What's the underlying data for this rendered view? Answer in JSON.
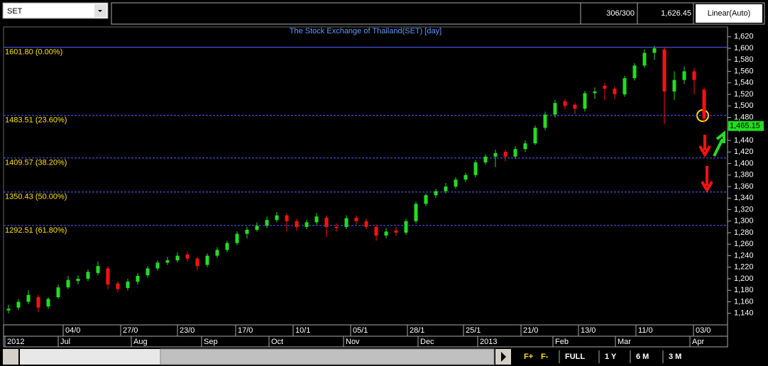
{
  "header": {
    "symbol": "SET",
    "count": "306/300",
    "price": "1,626.45",
    "scale": "Linear(Auto)"
  },
  "chart_data": {
    "type": "candlestick",
    "title": "The Stock Exchange of Thailand(SET) [day]",
    "up_color": "#22dd22",
    "down_color": "#ff1111",
    "ohlc": [
      [
        1145,
        1155,
        1140,
        1148
      ],
      [
        1150,
        1165,
        1146,
        1160
      ],
      [
        1160,
        1180,
        1156,
        1172
      ],
      [
        1168,
        1172,
        1142,
        1150
      ],
      [
        1152,
        1168,
        1148,
        1165
      ],
      [
        1168,
        1190,
        1165,
        1185
      ],
      [
        1185,
        1205,
        1182,
        1198
      ],
      [
        1196,
        1206,
        1190,
        1200
      ],
      [
        1200,
        1216,
        1196,
        1212
      ],
      [
        1210,
        1230,
        1206,
        1222
      ],
      [
        1218,
        1222,
        1182,
        1190
      ],
      [
        1192,
        1196,
        1176,
        1182
      ],
      [
        1184,
        1200,
        1180,
        1195
      ],
      [
        1195,
        1210,
        1190,
        1205
      ],
      [
        1206,
        1222,
        1202,
        1218
      ],
      [
        1218,
        1232,
        1214,
        1228
      ],
      [
        1228,
        1238,
        1224,
        1232
      ],
      [
        1232,
        1246,
        1228,
        1240
      ],
      [
        1242,
        1246,
        1230,
        1235
      ],
      [
        1235,
        1238,
        1215,
        1222
      ],
      [
        1224,
        1244,
        1220,
        1240
      ],
      [
        1240,
        1255,
        1236,
        1250
      ],
      [
        1250,
        1266,
        1246,
        1262
      ],
      [
        1262,
        1282,
        1258,
        1278
      ],
      [
        1278,
        1290,
        1270,
        1285
      ],
      [
        1285,
        1298,
        1282,
        1292
      ],
      [
        1292,
        1308,
        1288,
        1302
      ],
      [
        1302,
        1316,
        1298,
        1310
      ],
      [
        1310,
        1314,
        1282,
        1300
      ],
      [
        1300,
        1304,
        1284,
        1290
      ],
      [
        1290,
        1302,
        1286,
        1298
      ],
      [
        1298,
        1314,
        1294,
        1308
      ],
      [
        1306,
        1310,
        1272,
        1290
      ],
      [
        1290,
        1296,
        1282,
        1288
      ],
      [
        1290,
        1310,
        1286,
        1305
      ],
      [
        1306,
        1310,
        1294,
        1300
      ],
      [
        1300,
        1304,
        1286,
        1290
      ],
      [
        1290,
        1294,
        1266,
        1275
      ],
      [
        1275,
        1288,
        1270,
        1282
      ],
      [
        1284,
        1290,
        1274,
        1280
      ],
      [
        1280,
        1304,
        1276,
        1300
      ],
      [
        1300,
        1334,
        1296,
        1330
      ],
      [
        1330,
        1348,
        1326,
        1345
      ],
      [
        1345,
        1356,
        1340,
        1352
      ],
      [
        1352,
        1366,
        1348,
        1360
      ],
      [
        1360,
        1376,
        1356,
        1372
      ],
      [
        1372,
        1384,
        1368,
        1380
      ],
      [
        1380,
        1406,
        1376,
        1402
      ],
      [
        1402,
        1416,
        1398,
        1412
      ],
      [
        1412,
        1424,
        1394,
        1418
      ],
      [
        1420,
        1424,
        1404,
        1412
      ],
      [
        1412,
        1430,
        1408,
        1425
      ],
      [
        1425,
        1440,
        1420,
        1435
      ],
      [
        1435,
        1466,
        1432,
        1462
      ],
      [
        1462,
        1490,
        1458,
        1485
      ],
      [
        1485,
        1510,
        1480,
        1505
      ],
      [
        1508,
        1512,
        1494,
        1500
      ],
      [
        1502,
        1506,
        1486,
        1495
      ],
      [
        1495,
        1526,
        1490,
        1522
      ],
      [
        1522,
        1532,
        1512,
        1525
      ],
      [
        1535,
        1540,
        1510,
        1530
      ],
      [
        1530,
        1534,
        1512,
        1520
      ],
      [
        1520,
        1552,
        1516,
        1548
      ],
      [
        1548,
        1574,
        1544,
        1570
      ],
      [
        1570,
        1598,
        1566,
        1592
      ],
      [
        1592,
        1604,
        1580,
        1600
      ],
      [
        1598,
        1602,
        1468,
        1525
      ],
      [
        1525,
        1560,
        1510,
        1545
      ],
      [
        1545,
        1568,
        1538,
        1560
      ],
      [
        1560,
        1566,
        1520,
        1545
      ],
      [
        1528,
        1532,
        1470,
        1478
      ]
    ],
    "ylim": [
      1120,
      1637
    ],
    "yticks": [
      {
        "value": 1140,
        "label": "1,140"
      },
      {
        "value": 1160,
        "label": "1,160"
      },
      {
        "value": 1180,
        "label": "1,180"
      },
      {
        "value": 1200,
        "label": "1,200"
      },
      {
        "value": 1220,
        "label": "1,220"
      },
      {
        "value": 1240,
        "label": "1,240"
      },
      {
        "value": 1260,
        "label": "1,260"
      },
      {
        "value": 1280,
        "label": "1,280"
      },
      {
        "value": 1300,
        "label": "1,300"
      },
      {
        "value": 1320,
        "label": "1,320"
      },
      {
        "value": 1340,
        "label": "1,340"
      },
      {
        "value": 1360,
        "label": "1,360"
      },
      {
        "value": 1380,
        "label": "1,380"
      },
      {
        "value": 1400,
        "label": "1,400"
      },
      {
        "value": 1420,
        "label": "1,420"
      },
      {
        "value": 1440,
        "label": "1,440"
      },
      {
        "value": 1460,
        "label": "1,460"
      },
      {
        "value": 1480,
        "label": "1,480"
      },
      {
        "value": 1500,
        "label": "1,500"
      },
      {
        "value": 1520,
        "label": "1,520"
      },
      {
        "value": 1540,
        "label": "1,540"
      },
      {
        "value": 1560,
        "label": "1,560"
      },
      {
        "value": 1580,
        "label": "1,580"
      },
      {
        "value": 1600,
        "label": "1,600"
      },
      {
        "value": 1620,
        "label": "1,620"
      }
    ],
    "fib_levels": [
      {
        "value": 1601.8,
        "label": "1601.80 (0.00%)"
      },
      {
        "value": 1483.51,
        "label": "1483.51 (23.60%)"
      },
      {
        "value": 1409.57,
        "label": "1409.57 (38.20%)"
      },
      {
        "value": 1350.43,
        "label": "1350.43 (50.00%)"
      },
      {
        "value": 1292.51,
        "label": "1292.51 (61.80%)"
      }
    ],
    "last_price": {
      "value": 1465.15,
      "label": "1,465.15"
    },
    "date_labels": [
      "04/0",
      "27/0",
      "23/0",
      "17/0",
      "10/1",
      "05/1",
      "28/1",
      "25/1",
      "21/0",
      "13/0",
      "11/0",
      "03/0"
    ],
    "month_labels": [
      "2012",
      "Jul",
      "Aug",
      "Sep",
      "Oct",
      "Nov",
      "Dec",
      "2013",
      "Feb",
      "Mar",
      "Apr"
    ]
  },
  "toolbar": {
    "buttons": [
      "F+",
      "F-",
      "FULL",
      "1 Y",
      "6 M",
      "3 M"
    ]
  }
}
